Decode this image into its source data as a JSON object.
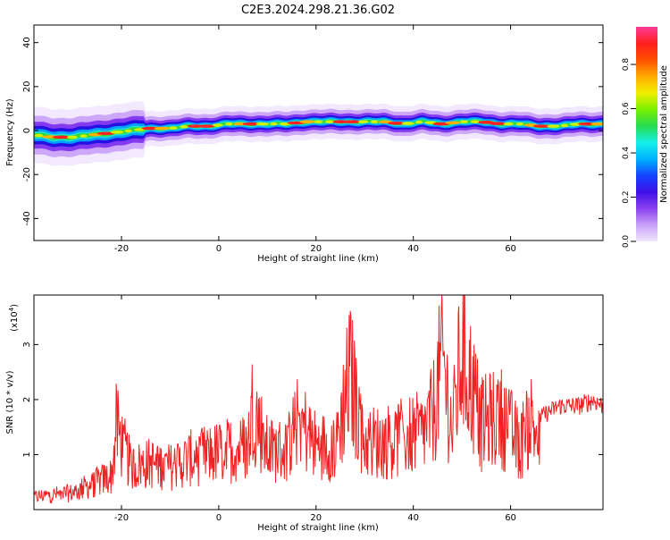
{
  "title": "C2E3.2024.298.21.36.G02",
  "chart_data": [
    {
      "type": "heatmap",
      "xlabel": "Height of straight line (km)",
      "ylabel": "Frequency (Hz)",
      "xlim": [
        -38,
        79
      ],
      "ylim": [
        -50,
        48
      ],
      "xticks": [
        -20,
        0,
        20,
        40,
        60
      ],
      "yticks": [
        -40,
        -20,
        0,
        20,
        40
      ],
      "colorbar": {
        "label": "Normalized spectral amplitude",
        "range": [
          0,
          0.97
        ],
        "ticks": [
          0.0,
          0.2,
          0.4,
          0.6,
          0.8
        ],
        "tick_labels": [
          "0.0",
          "0.2",
          "0.4",
          "0.6",
          "0.8"
        ],
        "colormap": [
          "#f2e6ff",
          "#c8a0f8",
          "#8a40f0",
          "#3c10e8",
          "#1446ff",
          "#00b4ff",
          "#14f0e6",
          "#28dc50",
          "#78f000",
          "#f0f000",
          "#ffaa00",
          "#ff5000",
          "#ff1e1e",
          "#ff3c96"
        ]
      },
      "ridge": {
        "x": [
          -38,
          -34,
          -30,
          -26,
          -22,
          -18,
          -14,
          -10,
          -6,
          -2,
          2,
          6,
          10,
          14,
          18,
          22,
          26,
          30,
          34,
          38,
          42,
          46,
          50,
          54,
          58,
          62,
          66,
          70,
          74,
          79
        ],
        "freq": [
          -2,
          -3,
          -3,
          -2,
          -1,
          0,
          1,
          1,
          2,
          2,
          3,
          3,
          3,
          3,
          4,
          4,
          4,
          4,
          4,
          3,
          4,
          3,
          4,
          4,
          3,
          3,
          2,
          2,
          3,
          3
        ]
      }
    },
    {
      "type": "line",
      "xlabel": "Height of straight line (km)",
      "ylabel": "SNR (10 * v/v)",
      "scale_label": "(x10",
      "scale_exp": "4",
      "scale_close": ")",
      "xlim": [
        -38,
        79
      ],
      "ylim": [
        0,
        3.9
      ],
      "xticks": [
        -20,
        0,
        20,
        40,
        60
      ],
      "yticks": [
        1,
        2,
        3
      ],
      "color": "#ee2222",
      "series": [
        {
          "x": [
            -38,
            -34,
            -30,
            -26,
            -22,
            -21,
            -20,
            -18,
            -14,
            -10,
            -6,
            -2,
            0,
            2,
            6,
            7,
            10,
            14,
            16,
            20,
            24,
            27,
            30,
            34,
            38,
            42,
            44,
            46,
            48,
            50,
            54,
            58,
            62,
            64,
            66,
            70,
            74,
            77,
            79
          ],
          "y": [
            0.3,
            0.35,
            0.4,
            0.6,
            0.8,
            2.0,
            1.6,
            1.0,
            1.1,
            1.0,
            1.2,
            1.3,
            1.35,
            1.4,
            1.5,
            2.5,
            1.4,
            1.4,
            2.2,
            1.5,
            1.5,
            3.2,
            1.6,
            1.6,
            1.7,
            1.8,
            2.2,
            3.6,
            1.8,
            3.8,
            2.0,
            2.2,
            1.5,
            2.2,
            1.6,
            1.8,
            1.8,
            1.9,
            1.8
          ]
        }
      ]
    }
  ]
}
